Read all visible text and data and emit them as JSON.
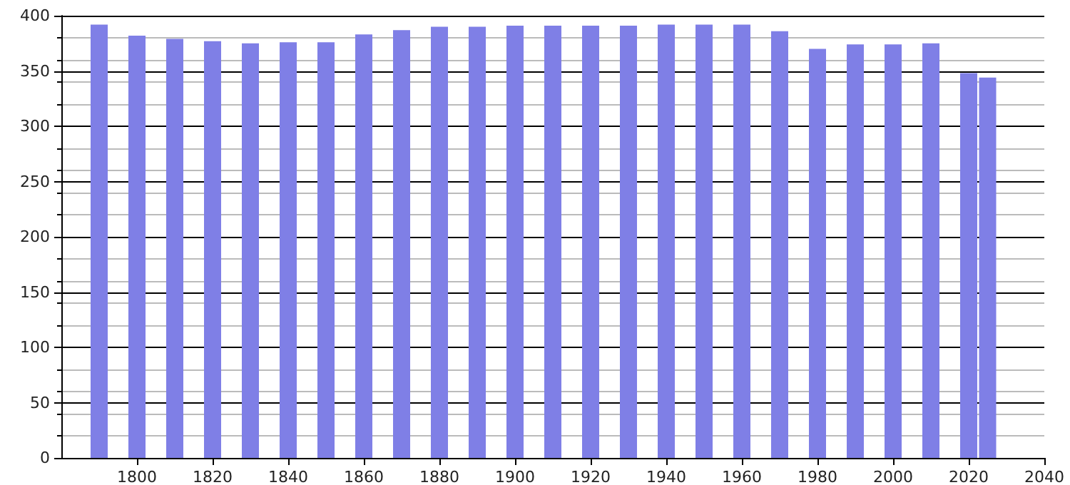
{
  "chart_data": {
    "type": "bar",
    "x": [
      1790,
      1800,
      1810,
      1820,
      1830,
      1840,
      1850,
      1860,
      1870,
      1880,
      1890,
      1900,
      1910,
      1920,
      1930,
      1940,
      1950,
      1960,
      1970,
      1980,
      1990,
      2000,
      2010,
      2020,
      2025
    ],
    "values": [
      392,
      382,
      379,
      377,
      375,
      376,
      376,
      383,
      387,
      390,
      390,
      391,
      391,
      391,
      391,
      392,
      392,
      392,
      386,
      370,
      374,
      374,
      375,
      348,
      344
    ],
    "color": "#7f7fe6",
    "xlim": [
      1780,
      2040
    ],
    "xticks": [
      1800,
      1820,
      1840,
      1860,
      1880,
      1900,
      1920,
      1940,
      1960,
      1980,
      2000,
      2020,
      2040
    ],
    "ylim": [
      0,
      400
    ],
    "yticks": [
      0,
      50,
      100,
      150,
      200,
      250,
      300,
      350,
      400
    ],
    "grid": "y"
  }
}
